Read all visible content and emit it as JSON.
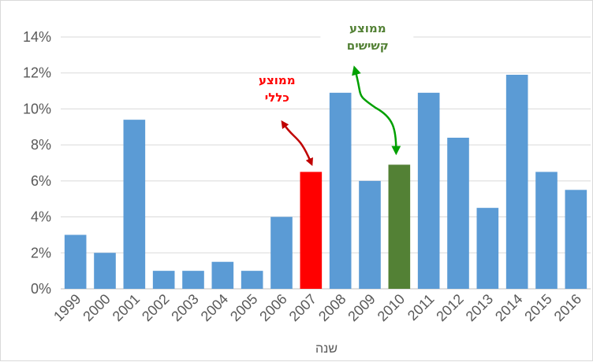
{
  "chart_data": {
    "type": "bar",
    "title": "",
    "xlabel": "שנה",
    "ylabel": "",
    "ylim": [
      0,
      0.14
    ],
    "yticks": [
      0,
      0.02,
      0.04,
      0.06,
      0.08,
      0.1,
      0.12,
      0.14
    ],
    "ytick_labels": [
      "0%",
      "2%",
      "4%",
      "6%",
      "8%",
      "10%",
      "12%",
      "14%"
    ],
    "grid": true,
    "legend": "none",
    "categories": [
      "1999",
      "2000",
      "2001",
      "2002",
      "2003",
      "2004",
      "2005",
      "2006",
      "2007",
      "2008",
      "2009",
      "2010",
      "2011",
      "2012",
      "2013",
      "2014",
      "2015",
      "2016"
    ],
    "values": [
      0.03,
      0.02,
      0.094,
      0.01,
      0.01,
      0.015,
      0.01,
      0.04,
      0.065,
      0.109,
      0.06,
      0.069,
      0.109,
      0.084,
      0.045,
      0.119,
      0.065,
      0.055
    ],
    "colors": {
      "default": "#5b9bd5",
      "2007": "#ff0000",
      "2010": "#538135"
    },
    "annotations": [
      {
        "lines": [
          "ממוצע",
          "כללי"
        ],
        "color": "#ff0000",
        "category": "2007"
      },
      {
        "lines": [
          "ממוצע",
          "קשישים"
        ],
        "color": "#538135",
        "category": "2010"
      }
    ]
  }
}
